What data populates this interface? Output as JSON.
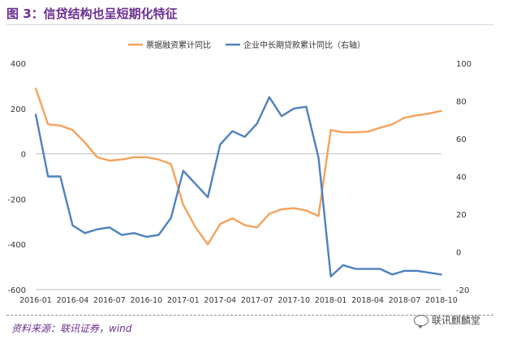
{
  "figure": {
    "title": "图 3：信贷结构也呈短期化特征",
    "source": "资料来源：联讯证券，wind",
    "watermark": "联讯麒麟堂",
    "watermark_icon": "wechat-icon"
  },
  "chart_data": {
    "type": "line",
    "title": "图 3：信贷结构也呈短期化特征",
    "xlabel": "",
    "ylabel": "",
    "x": [
      "2016-01",
      "2016-02",
      "2016-03",
      "2016-04",
      "2016-05",
      "2016-06",
      "2016-07",
      "2016-08",
      "2016-09",
      "2016-10",
      "2016-11",
      "2016-12",
      "2017-01",
      "2017-02",
      "2017-03",
      "2017-04",
      "2017-05",
      "2017-06",
      "2017-07",
      "2017-08",
      "2017-09",
      "2017-10",
      "2017-11",
      "2017-12",
      "2018-01",
      "2018-02",
      "2018-03",
      "2018-04",
      "2018-05",
      "2018-06",
      "2018-07",
      "2018-08",
      "2018-09",
      "2018-10"
    ],
    "x_ticks": [
      "2016-01",
      "2016-04",
      "2016-07",
      "2016-10",
      "2017-01",
      "2017-04",
      "2017-07",
      "2017-10",
      "2018-01",
      "2018-04",
      "2018-07",
      "2018-10"
    ],
    "left_axis": {
      "ylim": [
        -600,
        400
      ],
      "ticks": [
        -600,
        -400,
        -200,
        0,
        200,
        400
      ]
    },
    "right_axis": {
      "ylim": [
        -20,
        100
      ],
      "ticks": [
        -20,
        0,
        20,
        40,
        60,
        80,
        100
      ]
    },
    "grid": false,
    "legend_position": "top",
    "series": [
      {
        "name": "票据融资累计同比",
        "axis": "left",
        "color": "#f4a25b",
        "values": [
          290,
          130,
          125,
          105,
          50,
          -15,
          -30,
          -25,
          -15,
          -15,
          -25,
          -45,
          -225,
          -325,
          -400,
          -310,
          -285,
          -315,
          -325,
          -265,
          -245,
          -240,
          -250,
          -275,
          105,
          95,
          95,
          98,
          115,
          130,
          160,
          170,
          178,
          190
        ]
      },
      {
        "name": "企业中长期贷款累计同比（右轴）",
        "axis": "right",
        "color": "#4e81c0",
        "values": [
          73,
          40,
          40,
          14,
          10,
          12,
          13,
          9,
          10,
          8,
          9,
          18,
          43,
          36,
          29,
          57,
          64,
          61,
          68,
          82,
          72,
          76,
          77,
          50,
          -13,
          -7,
          -9,
          -9,
          -9,
          -12,
          -10,
          -10,
          -11,
          -12
        ]
      }
    ]
  }
}
